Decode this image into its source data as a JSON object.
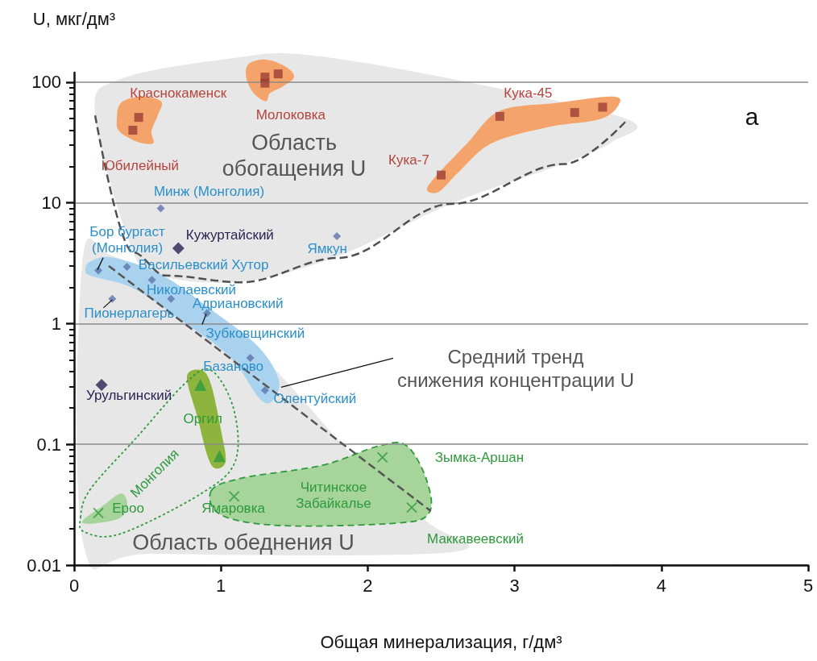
{
  "chart_data": {
    "type": "scatter",
    "xlabel": "Общая минерализация, г/дм³",
    "ylabel": "U, мкг/дм³",
    "xlim": [
      0,
      5
    ],
    "xticks": [
      0,
      1,
      2,
      3,
      4,
      5
    ],
    "ylim": [
      0.01,
      120
    ],
    "yticks": [
      0.01,
      0.1,
      1,
      10,
      100
    ],
    "log": "y",
    "grid": "y",
    "series": [
      {
        "marker": "square",
        "color": "#9e3d34",
        "x": [
          0.44,
          0.4,
          1.3,
          1.3,
          1.39,
          2.5,
          2.9,
          3.41,
          3.6
        ],
        "values": [
          51,
          40,
          110,
          98,
          117,
          17,
          52,
          56,
          62
        ]
      },
      {
        "marker": "diamond",
        "color": "#5d76ad",
        "x": [
          0.59,
          1.79,
          0.165,
          0.36,
          0.53,
          0.66,
          0.26,
          0.905,
          1.2,
          1.3
        ],
        "values": [
          9,
          5.3,
          2.75,
          2.95,
          2.3,
          1.6,
          1.6,
          1.22,
          0.52,
          0.28
        ]
      },
      {
        "marker": "diamond",
        "color": "#2a2353",
        "x": [
          0.71,
          0.187
        ],
        "values": [
          4.2,
          0.31
        ]
      },
      {
        "marker": "triangle",
        "color": "#2e9a3c",
        "x": [
          0.86,
          0.99
        ],
        "values": [
          0.31,
          0.08
        ]
      },
      {
        "marker": "cross",
        "color": "#2e9a3c",
        "x": [
          0.165,
          1.09,
          2.1,
          2.3
        ],
        "values": [
          0.027,
          0.037,
          0.078,
          0.03
        ]
      },
      {
        "type": "line",
        "marker": "none",
        "line_style": "dashed",
        "color": "#555555",
        "x": [
          0.236,
          2.43
        ],
        "values": [
          3.0,
          0.028
        ]
      },
      {
        "type": "line",
        "marker": "none",
        "line_style": "dashed",
        "color": "#505050",
        "x": [
          0.143,
          0.4,
          0.62,
          1.14,
          1.8,
          2.57,
          3.34,
          3.77
        ],
        "values": [
          53,
          3.9,
          2.5,
          2.2,
          3.5,
          9.8,
          21,
          49
        ]
      }
    ],
    "annotations": [
      {
        "text": "Краснокаменск",
        "x": 0.44,
        "y": 51
      },
      {
        "text": "Юбилейный",
        "x": 0.4,
        "y": 40
      },
      {
        "text": "Молоковка",
        "x": 1.3,
        "y": 110
      },
      {
        "text": "Кука-45",
        "x": 2.9,
        "y": 52
      },
      {
        "text": "Кука-7",
        "x": 2.5,
        "y": 17
      },
      {
        "text": "Минж (Монголия)",
        "x": 0.59,
        "y": 9
      },
      {
        "text": "Кужуртайский",
        "x": 0.71,
        "y": 4.2
      },
      {
        "text": "Ямкун",
        "x": 1.79,
        "y": 5.3
      },
      {
        "text": "Бор бургаст\n(Монголия)",
        "x": 0.165,
        "y": 2.75
      },
      {
        "text": "Васильевский Хутор",
        "x": 0.36,
        "y": 2.95
      },
      {
        "text": "Николаевский",
        "x": 0.53,
        "y": 2.3
      },
      {
        "text": "Адриановский",
        "x": 0.66,
        "y": 1.6
      },
      {
        "text": "Пионерлагерь",
        "x": 0.26,
        "y": 1.6
      },
      {
        "text": "Зубковщинский",
        "x": 0.905,
        "y": 1.22
      },
      {
        "text": "Базаново",
        "x": 1.2,
        "y": 0.52
      },
      {
        "text": "Олентуйский",
        "x": 1.3,
        "y": 0.28
      },
      {
        "text": "Урульгинский",
        "x": 0.187,
        "y": 0.31
      },
      {
        "text": "Оргил",
        "x": 0.86,
        "y": 0.31
      },
      {
        "text": "Ероо",
        "x": 0.165,
        "y": 0.027
      },
      {
        "text": "Ямаровка",
        "x": 1.09,
        "y": 0.037
      },
      "Зымка-Аршан",
      {
        "text": "Маккавеевский",
        "x": 2.3,
        "y": 0.03
      },
      "Средний тренд\nснижения концентрации U",
      "Область\nобогащения U",
      "Область обеднения U",
      "Монголия",
      "Читинское\nЗабайкалье",
      "а"
    ]
  }
}
